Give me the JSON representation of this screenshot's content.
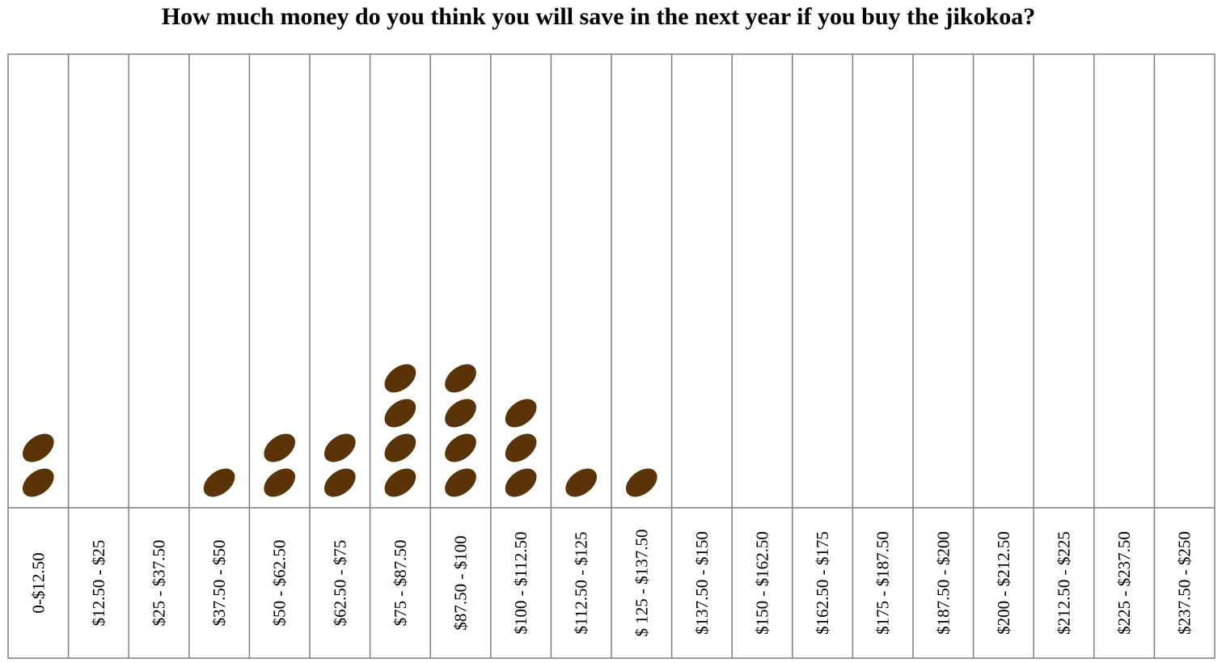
{
  "chart_data": {
    "type": "bar",
    "title": "How much money do you think you will save in the next year if you buy the jikokoa?",
    "xlabel": "",
    "ylabel": "",
    "categories": [
      "0-$12.50",
      "$12.50 - $25",
      "$25 - $37.50",
      "$37.50 - $50",
      "$50 - $62.50",
      "$62.50 - $75",
      "$75 - $87.50",
      "$87.50 - $100",
      "$100 - $112.50",
      "$112.50 - $125",
      "$ 125 - $137.50",
      "$137.50 - $150",
      "$150 - $162.50",
      "$162.50 - $175",
      "$175 - $187.50",
      "$187.50 - $200",
      "$200 - $212.50",
      "$212.50 - $225",
      "$225 - $237.50",
      "$237.50 - $250"
    ],
    "values": [
      2,
      0,
      0,
      1,
      2,
      2,
      4,
      4,
      3,
      1,
      1,
      0,
      0,
      0,
      0,
      0,
      0,
      0,
      0,
      0
    ],
    "grid": true,
    "legend": "none",
    "marker": "bean",
    "colors": {
      "marker": "#5a3408",
      "grid": "#7f7f7f",
      "text": "#000000"
    }
  }
}
